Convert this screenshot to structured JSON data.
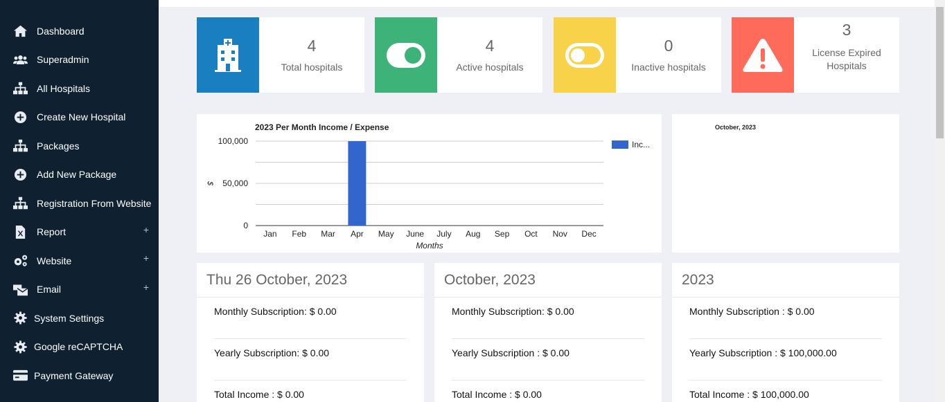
{
  "sidebar": {
    "items": [
      {
        "label": "Dashboard",
        "icon": "home-icon"
      },
      {
        "label": "Superadmin",
        "icon": "users-icon"
      },
      {
        "label": "All Hospitals",
        "icon": "sitemap-icon"
      },
      {
        "label": "Create New Hospital",
        "icon": "plus-circle-icon"
      },
      {
        "label": "Packages",
        "icon": "sitemap-icon"
      },
      {
        "label": "Add New Package",
        "icon": "plus-circle-icon"
      },
      {
        "label": "Registration From Website",
        "icon": "sitemap-icon"
      },
      {
        "label": "Report",
        "icon": "excel-file-icon",
        "expand": "+"
      },
      {
        "label": "Website",
        "icon": "cogs-icon",
        "expand": "+"
      },
      {
        "label": "Email",
        "icon": "mail-bulk-icon",
        "expand": "+"
      },
      {
        "label": "System Settings",
        "icon": "gear-icon"
      },
      {
        "label": "Google reCAPTCHA",
        "icon": "gear-icon"
      },
      {
        "label": "Payment Gateway",
        "icon": "credit-card-icon"
      }
    ]
  },
  "stats": [
    {
      "value": "4",
      "label": "Total hospitals",
      "color": "#1a7fc1",
      "icon": "hospital-icon"
    },
    {
      "value": "4",
      "label": "Active hospitals",
      "color": "#3db37a",
      "icon": "toggle-on-icon"
    },
    {
      "value": "0",
      "label": "Inactive hospitals",
      "color": "#f8d34a",
      "icon": "toggle-off-icon"
    },
    {
      "value": "3",
      "label": "License Expired Hospitals",
      "color": "#ff6b5b",
      "icon": "warning-icon"
    }
  ],
  "chart_data": {
    "type": "bar",
    "title": "2023 Per Month Income / Expense",
    "xlabel": "Months",
    "ylabel": "$",
    "categories": [
      "Jan",
      "Feb",
      "Mar",
      "Apr",
      "May",
      "June",
      "July",
      "Aug",
      "Sep",
      "Oct",
      "Nov",
      "Dec"
    ],
    "series": [
      {
        "name": "Inc...",
        "color": "#3366cc",
        "values": [
          0,
          0,
          0,
          100000,
          0,
          0,
          0,
          0,
          0,
          0,
          0,
          0
        ]
      }
    ],
    "ylim": [
      0,
      100000
    ],
    "yticks": [
      "100,000",
      "50,000",
      "0"
    ],
    "legend": "right",
    "grid": true
  },
  "side_chart": {
    "title": "October, 2023"
  },
  "cards": [
    {
      "title": "Thu 26 October, 2023",
      "rows": [
        "Monthly Subscription: $ 0.00",
        "Yearly Subscription: $ 0.00",
        "Total Income : $ 0.00"
      ]
    },
    {
      "title": "October, 2023",
      "rows": [
        "Monthly Subscription: $ 0.00",
        "Yearly Subscription : $ 0.00",
        "Total Income : $ 0.00"
      ]
    },
    {
      "title": "2023",
      "rows": [
        "Monthly Subscription : $ 0.00",
        "Yearly Subscription : $ 100,000.00",
        "Total Income : $ 100,000.00"
      ]
    }
  ]
}
